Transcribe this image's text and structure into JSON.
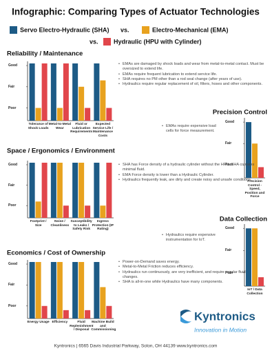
{
  "title": "Infographic: Comparing Types of Actuator Technologies",
  "legend": {
    "separator": "vs.",
    "items": [
      {
        "name": "Servo Electro-Hydraulic (SHA)",
        "color": "#1d5b86"
      },
      {
        "name": "Electro-Mechanical (EMA)",
        "color": "#e8a21f"
      },
      {
        "name": "Hydraulic (HPU with Cylinder)",
        "color": "#e1464b"
      }
    ]
  },
  "chart_data": [
    {
      "type": "bar",
      "title": "Reliability / Maintenance",
      "categories": [
        "Tolerance of Shock Loads",
        "Metal-to-Metal Wear",
        "Fluid or Lubrication Requirements",
        "Expected Service Life / Maintenance Costs"
      ],
      "series": [
        {
          "values": [
            3.1,
            3.1,
            3.1,
            3.1
          ]
        },
        {
          "values": [
            1.0,
            1.0,
            2.0,
            2.3
          ]
        },
        {
          "values": [
            3.1,
            3.1,
            1.0,
            1.0
          ]
        }
      ],
      "ylim": [
        0.4,
        3.1
      ],
      "yticks": [
        {
          "value": 3,
          "label": "Good"
        },
        {
          "value": 2,
          "label": "Fair"
        },
        {
          "value": 1,
          "label": "Poor"
        }
      ],
      "notes": [
        "EMAs are damaged by shock loads and wear from metal-to-metal contact. Must be oversized to extend life.",
        "EMAs require frequent lubrication to extend service life.",
        "SHA requires no PM other than a rod seal change (after years of use).",
        "Hydraulics require regular replacement of oil, filters, hoses and other components."
      ]
    },
    {
      "type": "bar",
      "title": "Precision Control",
      "categories": [
        "Precision Control - Speed, Position and Force"
      ],
      "series": [
        {
          "values": [
            3.0
          ]
        },
        {
          "values": [
            2.0
          ]
        },
        {
          "values": [
            0.9
          ]
        }
      ],
      "ylim": [
        0.4,
        3.1
      ],
      "yticks": [
        {
          "value": 3,
          "label": "Good"
        },
        {
          "value": 2,
          "label": "Fair"
        },
        {
          "value": 1,
          "label": "Poor"
        }
      ],
      "notes": [
        "EMAs require expensive load cells for force measurement."
      ]
    },
    {
      "type": "bar",
      "title": "Space / Ergonomics / Environment",
      "categories": [
        "Footprint / Size",
        "Noise / Cleanliness",
        "Susceptibility to Leaks / Safety Risk",
        "Ingress Protection (IP Rating)"
      ],
      "series": [
        {
          "values": [
            3.1,
            3.1,
            3.1,
            3.1
          ]
        },
        {
          "values": [
            1.2,
            3.1,
            3.1,
            1.0
          ]
        },
        {
          "values": [
            3.1,
            1.0,
            1.0,
            3.1
          ]
        }
      ],
      "ylim": [
        0.4,
        3.1
      ],
      "yticks": [
        {
          "value": 3,
          "label": "Good"
        },
        {
          "value": 2,
          "label": "Fair"
        },
        {
          "value": 1,
          "label": "Poor"
        }
      ],
      "notes": [
        "SHA has Force density of a hydraulic cylinder without the HPU.  SHA contains minimal fluid.",
        "EMA Force density is lower than a Hydraulic Cylinder.",
        "Hydraulics frequently leak, are dirty and create noisy and  unsafe conditions."
      ]
    },
    {
      "type": "bar",
      "title": "Data Collection",
      "categories": [
        "IoT / Data Collection"
      ],
      "series": [
        {
          "values": [
            3.0
          ]
        },
        {
          "values": [
            3.0
          ]
        },
        {
          "values": [
            0.8
          ]
        }
      ],
      "ylim": [
        0.4,
        3.1
      ],
      "yticks": [
        {
          "value": 3,
          "label": "Good"
        },
        {
          "value": 2,
          "label": "Fair"
        },
        {
          "value": 1,
          "label": "Poor"
        }
      ],
      "notes": [
        "Hydraulics require expensive instrumentation for IoT."
      ]
    },
    {
      "type": "bar",
      "title": "Economics / Cost of Ownership",
      "categories": [
        "Energy Usage",
        "Efficiency",
        "Fluid Replenishment / Disposal",
        "Machine Build and Commissioning"
      ],
      "series": [
        {
          "values": [
            3.1,
            3.1,
            3.1,
            3.1
          ]
        },
        {
          "values": [
            3.1,
            3.1,
            3.1,
            1.9
          ]
        },
        {
          "values": [
            1.0,
            0.8,
            0.8,
            1.0
          ]
        }
      ],
      "ylim": [
        0.4,
        3.1
      ],
      "yticks": [
        {
          "value": 3,
          "label": "Good"
        },
        {
          "value": 2,
          "label": "Fair"
        },
        {
          "value": 1,
          "label": "Poor"
        }
      ],
      "notes": [
        "Power-on-Demand saves energy.",
        "Metal-to-Metal Friction reduces efficiency.",
        "Hydraulics run continuously, are very inefficient, and require regular fluid changes.",
        "SHA is all-in-one while Hydraulics have many components."
      ]
    }
  ],
  "logo": {
    "name": "Kyntronics",
    "tagline": "Innovation in Motion"
  },
  "footer": "Kyntronics | 6565 Davis Industrial Parkway, Solon, OH 44139   www.kyntronics.com"
}
